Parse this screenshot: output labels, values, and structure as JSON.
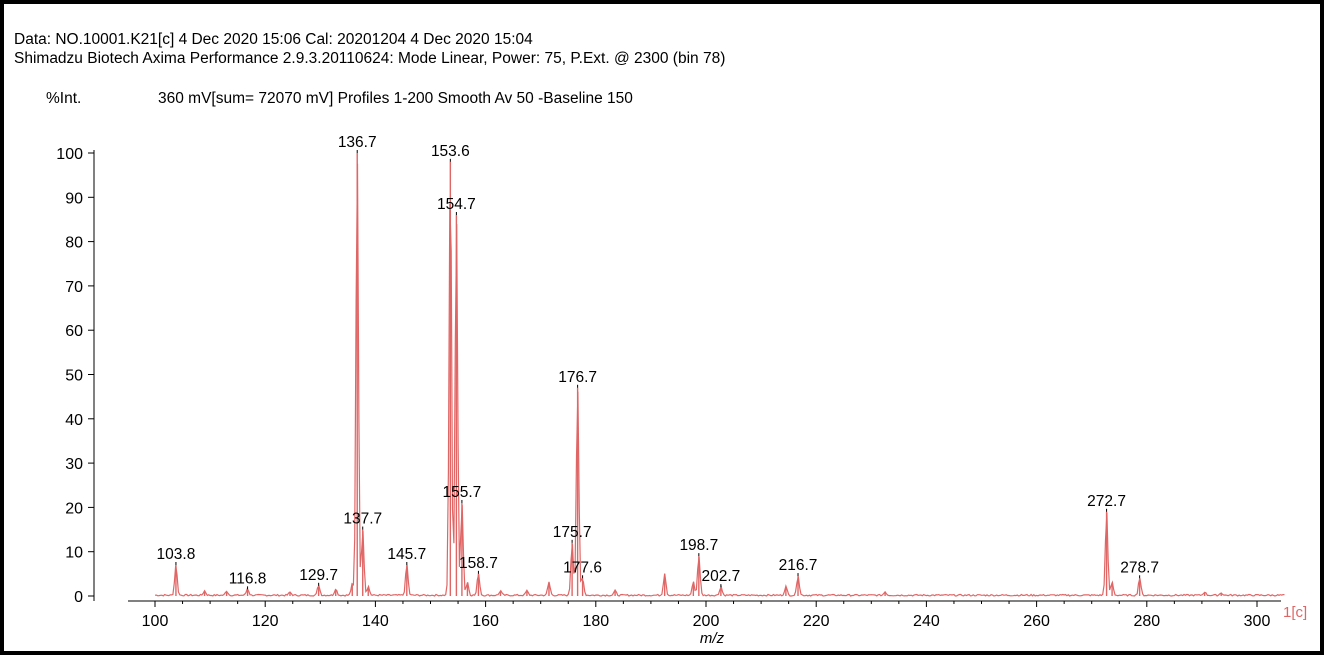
{
  "header": {
    "line1": "Data: NO.10001.K21[c] 4 Dec 2020 15:06 Cal: 20201204 4 Dec 2020 15:04",
    "line2": "Shimadzu Biotech Axima Performance 2.9.3.20110624: Mode Linear, Power: 75, P.Ext. @ 2300 (bin 78)",
    "intensity_label": "%Int.",
    "acquisition_info": "360 mV[sum= 72070 mV]  Profiles 1-200 Smooth Av 50 -Baseline 150",
    "trace_tag": "1[c]"
  },
  "colors": {
    "trace": "#e06666",
    "axis": "#000000",
    "frame": "#000000",
    "tag": "#e06666"
  },
  "chart_data": {
    "type": "line",
    "title": "",
    "xlabel": "m/z",
    "ylabel": "%Int.",
    "xlim": [
      100,
      305
    ],
    "ylim": [
      0,
      100
    ],
    "x_ticks": [
      100,
      120,
      140,
      160,
      180,
      200,
      220,
      240,
      260,
      280,
      300
    ],
    "y_ticks": [
      0,
      10,
      20,
      30,
      40,
      50,
      60,
      70,
      80,
      90,
      100
    ],
    "grid": false,
    "series": [
      {
        "peaks": [
          {
            "mz": 103.8,
            "intensity": 7,
            "label": "103.8"
          },
          {
            "mz": 109.0,
            "intensity": 1
          },
          {
            "mz": 113.0,
            "intensity": 1
          },
          {
            "mz": 116.8,
            "intensity": 1.5,
            "label": "116.8"
          },
          {
            "mz": 124.5,
            "intensity": 0.7
          },
          {
            "mz": 129.7,
            "intensity": 2.3,
            "label": "129.7"
          },
          {
            "mz": 132.8,
            "intensity": 1.5
          },
          {
            "mz": 135.8,
            "intensity": 2.5
          },
          {
            "mz": 136.7,
            "intensity": 100,
            "label": "136.7"
          },
          {
            "mz": 137.7,
            "intensity": 15,
            "label": "137.7"
          },
          {
            "mz": 138.7,
            "intensity": 2
          },
          {
            "mz": 145.7,
            "intensity": 7,
            "label": "145.7"
          },
          {
            "mz": 153.6,
            "intensity": 98,
            "label": "153.6"
          },
          {
            "mz": 154.7,
            "intensity": 86,
            "label": "154.7"
          },
          {
            "mz": 155.7,
            "intensity": 21,
            "label": "155.7"
          },
          {
            "mz": 156.7,
            "intensity": 3
          },
          {
            "mz": 158.7,
            "intensity": 5,
            "label": "158.7"
          },
          {
            "mz": 162.7,
            "intensity": 1
          },
          {
            "mz": 167.5,
            "intensity": 1
          },
          {
            "mz": 171.5,
            "intensity": 3
          },
          {
            "mz": 175.7,
            "intensity": 12,
            "label": "175.7"
          },
          {
            "mz": 176.7,
            "intensity": 47,
            "label": "176.7"
          },
          {
            "mz": 177.6,
            "intensity": 4,
            "label": "177.6"
          },
          {
            "mz": 183.5,
            "intensity": 1
          },
          {
            "mz": 192.5,
            "intensity": 5
          },
          {
            "mz": 197.7,
            "intensity": 3
          },
          {
            "mz": 198.7,
            "intensity": 9,
            "label": "198.7"
          },
          {
            "mz": 202.7,
            "intensity": 2,
            "label": "202.7"
          },
          {
            "mz": 214.5,
            "intensity": 2
          },
          {
            "mz": 216.7,
            "intensity": 4.5,
            "label": "216.7"
          },
          {
            "mz": 232.5,
            "intensity": 0.8
          },
          {
            "mz": 272.7,
            "intensity": 19,
            "label": "272.7"
          },
          {
            "mz": 273.7,
            "intensity": 3
          },
          {
            "mz": 278.7,
            "intensity": 4,
            "label": "278.7"
          },
          {
            "mz": 290.5,
            "intensity": 0.8
          },
          {
            "mz": 293.5,
            "intensity": 0.6
          }
        ]
      }
    ]
  }
}
